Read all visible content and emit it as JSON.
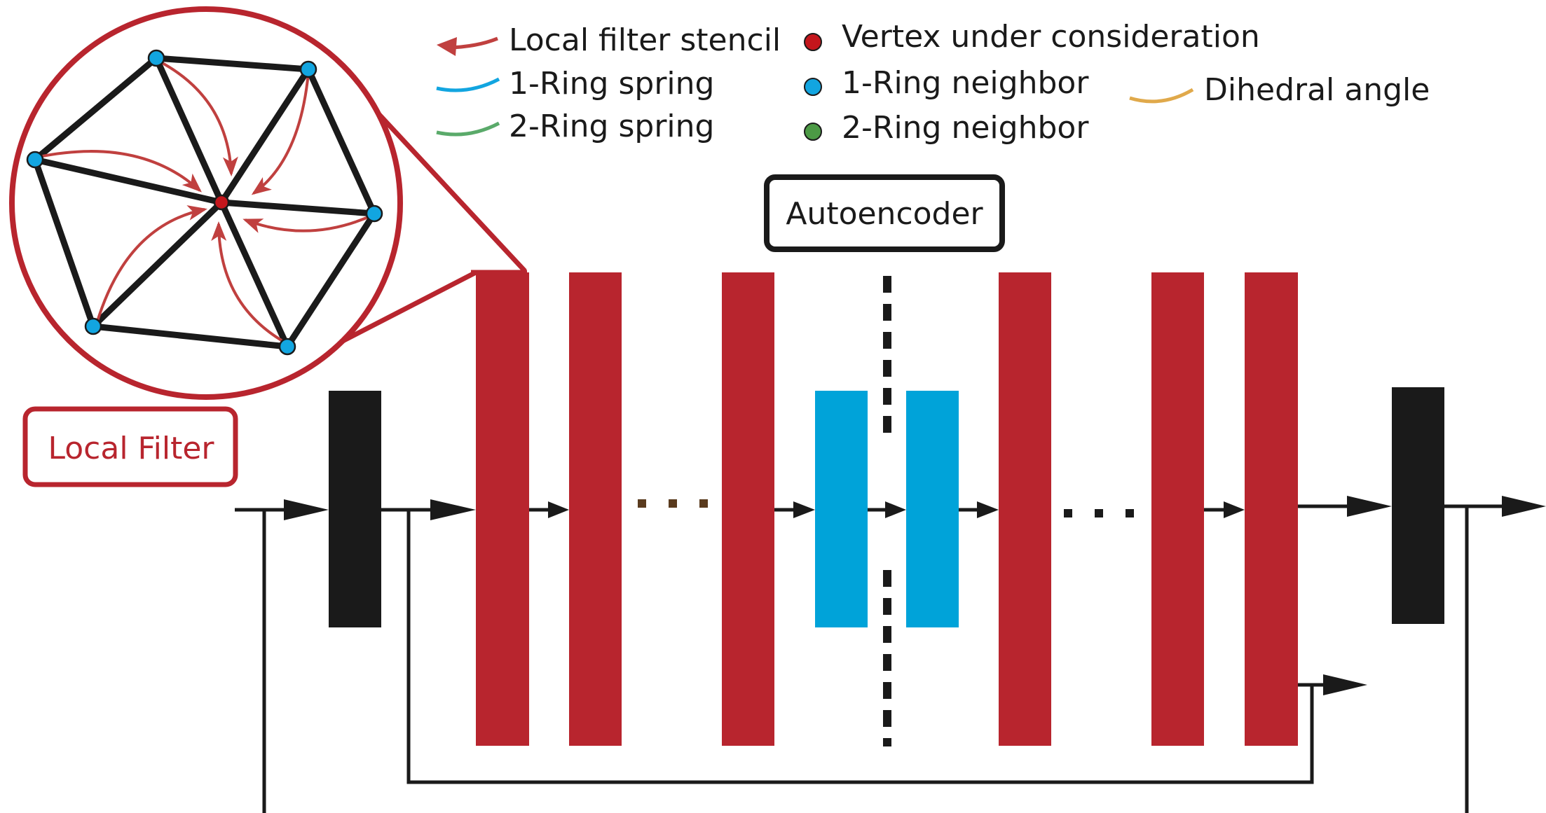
{
  "legend": {
    "local_filter_stencil": "Local filter stencil",
    "one_ring_spring": "1-Ring spring",
    "two_ring_spring": "2-Ring spring",
    "vertex_under_consideration": "Vertex under consideration",
    "one_ring_neighbor": "1-Ring neighbor",
    "two_ring_neighbor": "2-Ring neighbor",
    "dihedral_angle": "Dihedral angle"
  },
  "autoencoder_label": "Autoencoder",
  "local_filter_label": "Local Filter",
  "colors": {
    "red_layer": "#b8252e",
    "cyan_layer": "#00a3d9",
    "black": "#1a1a1a",
    "stencil_arrow": "#c0403f",
    "vertex": "#c4161c",
    "one_ring": "#12a5e0",
    "two_ring": "#4c9a45",
    "two_ring_spring_curve": "#5aaa6a",
    "dihedral_curve": "#e0a94b",
    "dots_brown": "#5a3b1e"
  },
  "icons": [
    "red-arrow-icon",
    "cyan-curve-icon",
    "green-curve-icon",
    "orange-curve-icon",
    "red-dot-icon",
    "cyan-dot-icon",
    "green-dot-icon"
  ]
}
